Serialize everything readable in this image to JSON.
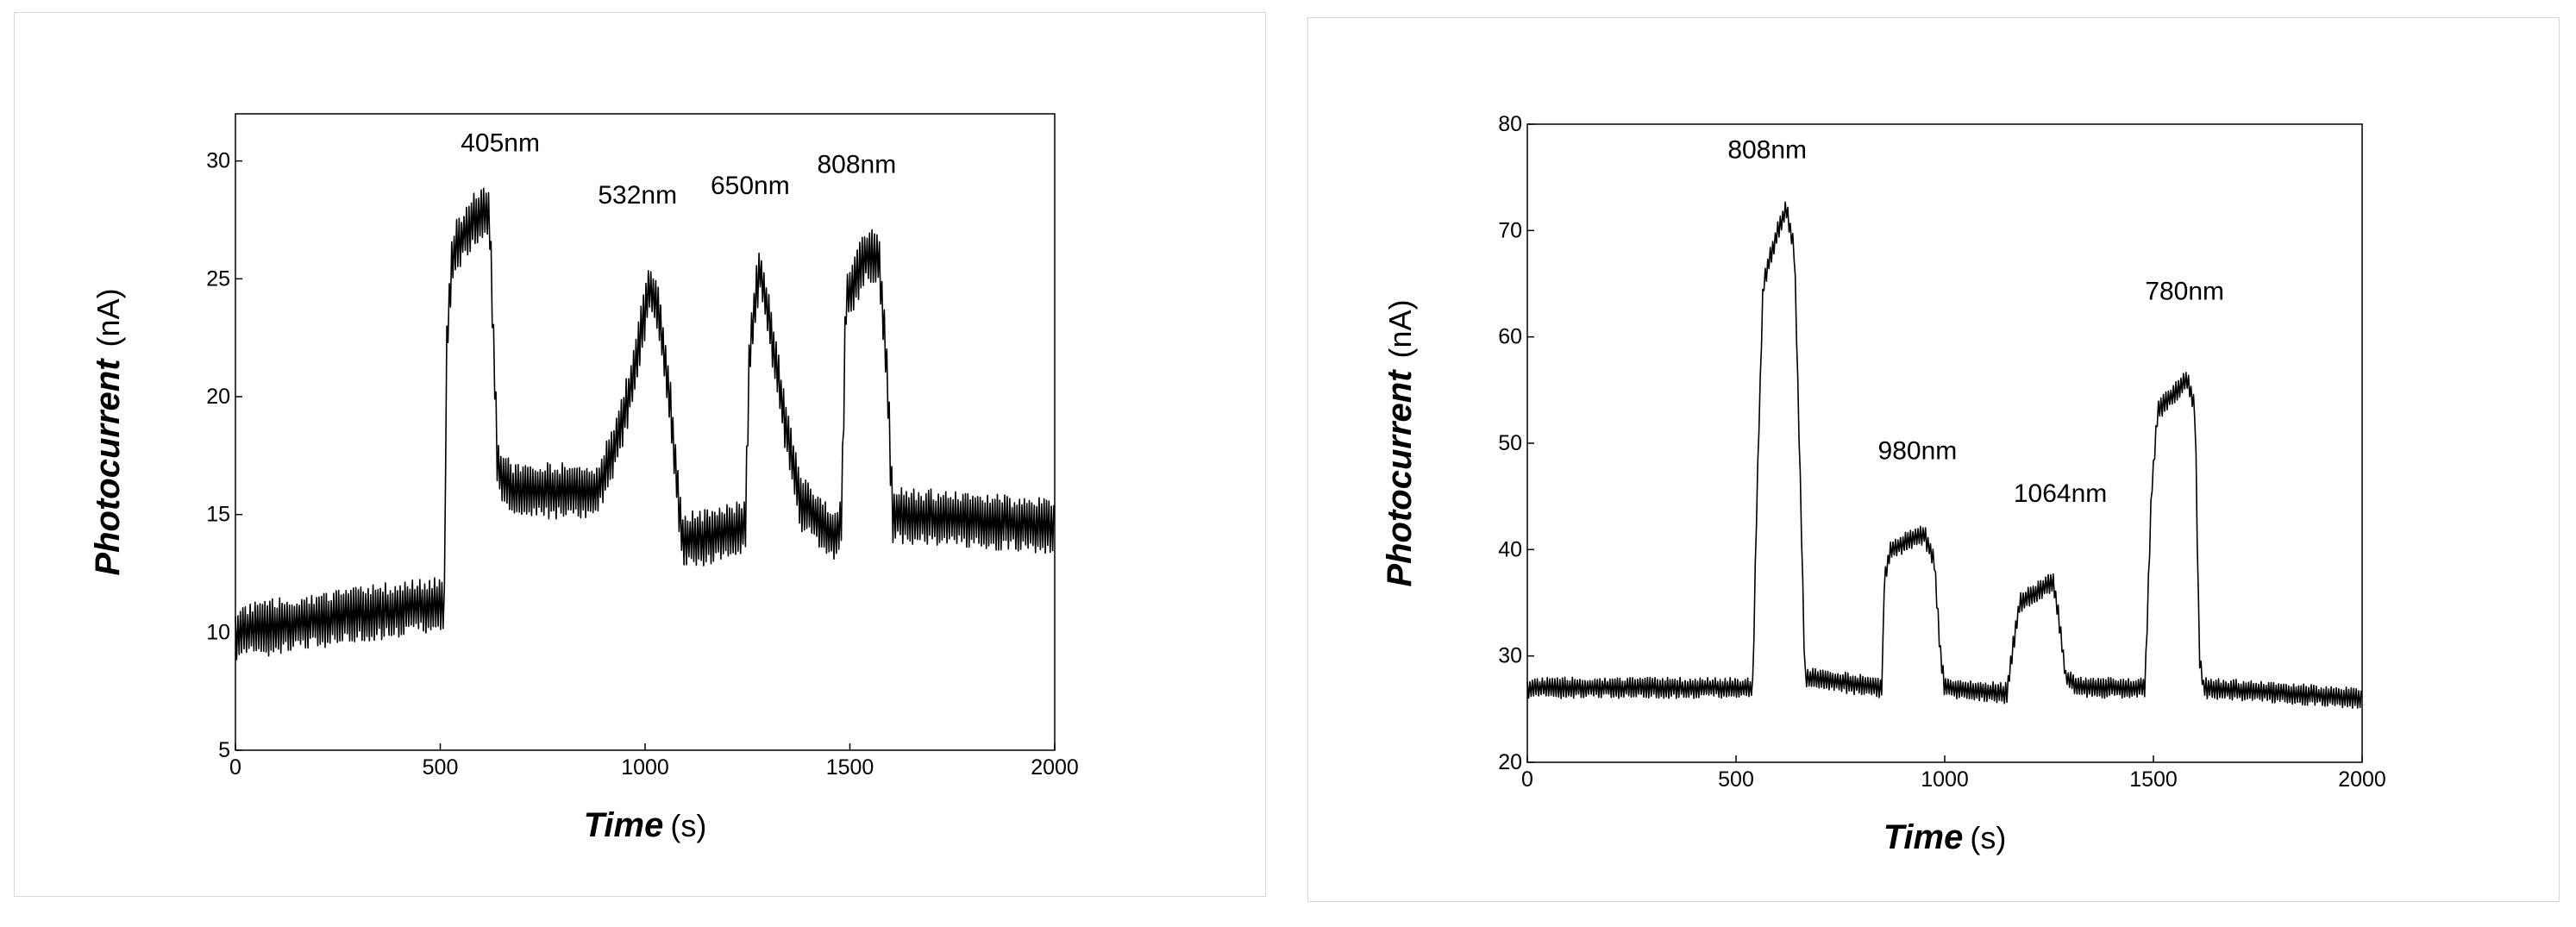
{
  "chart_data": [
    {
      "type": "line",
      "xlabel": "Time",
      "xunit": "(s)",
      "ylabel": "Photocurrent",
      "yunit": "(nA)",
      "xlim": [
        0,
        2000
      ],
      "ylim": [
        5,
        32
      ],
      "xticks": [
        0,
        500,
        1000,
        1500,
        2000
      ],
      "yticks": [
        5,
        10,
        15,
        20,
        25,
        30
      ],
      "noise_amplitude": 1.2,
      "trace": [
        [
          0,
          10
        ],
        [
          400,
          11
        ],
        [
          510,
          11.2
        ],
        [
          515,
          22
        ],
        [
          530,
          26
        ],
        [
          560,
          27
        ],
        [
          610,
          28
        ],
        [
          620,
          27.5
        ],
        [
          640,
          17
        ],
        [
          680,
          16
        ],
        [
          880,
          16
        ],
        [
          920,
          17.5
        ],
        [
          960,
          20
        ],
        [
          1010,
          24.5
        ],
        [
          1030,
          24
        ],
        [
          1060,
          20
        ],
        [
          1090,
          14
        ],
        [
          1140,
          14
        ],
        [
          1245,
          14.5
        ],
        [
          1255,
          22
        ],
        [
          1280,
          25.5
        ],
        [
          1300,
          23.5
        ],
        [
          1340,
          19
        ],
        [
          1380,
          15.5
        ],
        [
          1470,
          14
        ],
        [
          1480,
          15
        ],
        [
          1490,
          24
        ],
        [
          1540,
          26
        ],
        [
          1570,
          26
        ],
        [
          1590,
          21
        ],
        [
          1605,
          15
        ],
        [
          2000,
          14.5
        ]
      ],
      "annotations": [
        {
          "text": "405nm",
          "x": 550,
          "y": 30.4
        },
        {
          "text": "532nm",
          "x": 885,
          "y": 28.2
        },
        {
          "text": "650nm",
          "x": 1160,
          "y": 28.6
        },
        {
          "text": "808nm",
          "x": 1420,
          "y": 29.5
        }
      ]
    },
    {
      "type": "line",
      "xlabel": "Time",
      "xunit": "(s)",
      "ylabel": "Photocurrent",
      "yunit": "(nA)",
      "xlim": [
        0,
        2000
      ],
      "ylim": [
        20,
        80
      ],
      "xticks": [
        0,
        500,
        1000,
        1500,
        2000
      ],
      "yticks": [
        20,
        30,
        40,
        50,
        60,
        70,
        80
      ],
      "noise_amplitude": 1.0,
      "trace": [
        [
          0,
          27
        ],
        [
          540,
          27
        ],
        [
          550,
          45
        ],
        [
          565,
          65
        ],
        [
          600,
          70
        ],
        [
          620,
          72
        ],
        [
          640,
          68
        ],
        [
          655,
          45
        ],
        [
          665,
          28
        ],
        [
          850,
          27
        ],
        [
          855,
          37
        ],
        [
          870,
          40
        ],
        [
          950,
          41.5
        ],
        [
          975,
          39
        ],
        [
          990,
          30
        ],
        [
          1000,
          27
        ],
        [
          1150,
          26.5
        ],
        [
          1160,
          30
        ],
        [
          1180,
          35
        ],
        [
          1260,
          37
        ],
        [
          1275,
          33
        ],
        [
          1290,
          28
        ],
        [
          1320,
          27
        ],
        [
          1480,
          27
        ],
        [
          1495,
          45
        ],
        [
          1510,
          53
        ],
        [
          1580,
          56
        ],
        [
          1600,
          53
        ],
        [
          1610,
          30
        ],
        [
          1620,
          27
        ],
        [
          2000,
          26
        ]
      ],
      "annotations": [
        {
          "text": "808nm",
          "x": 480,
          "y": 76.8
        },
        {
          "text": "980nm",
          "x": 840,
          "y": 48.5
        },
        {
          "text": "1064nm",
          "x": 1165,
          "y": 44.5
        },
        {
          "text": "780nm",
          "x": 1480,
          "y": 63.5
        }
      ]
    }
  ]
}
